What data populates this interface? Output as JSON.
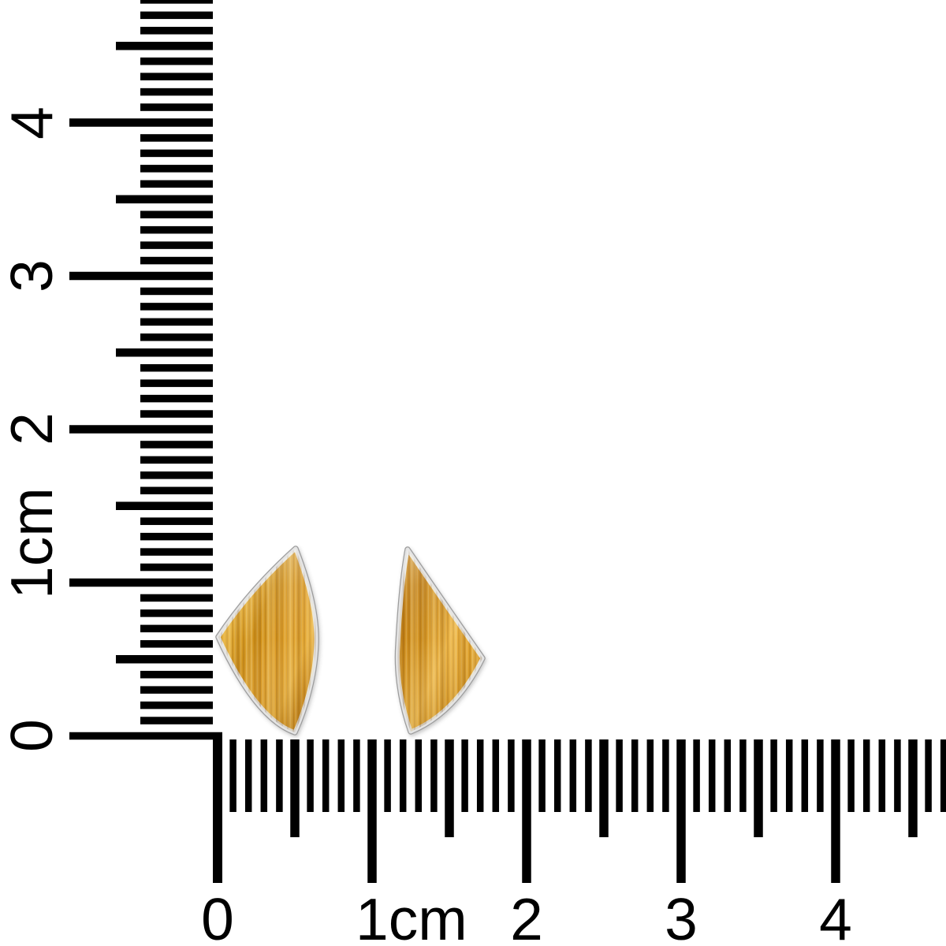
{
  "scene": {
    "background": "#ffffff",
    "subject": "Two triangular tiger-eye stud earrings photographed beside an L-shaped centimeter ruler"
  },
  "rulers": {
    "ink_color": "#000000",
    "unit": "cm",
    "vertical": {
      "labels": [
        "0",
        "1cm",
        "2",
        "3",
        "4"
      ]
    },
    "horizontal": {
      "labels": [
        "0",
        "1cm",
        "2",
        "3",
        "4"
      ]
    }
  },
  "earrings": {
    "stone": "tiger-eye",
    "count": 2,
    "colors": {
      "bezel_silver": "#e4e4e4",
      "bezel_edge": "#9c9c9c",
      "left_gradient": [
        "#eebb45",
        "#cf9018",
        "#dd9d28",
        "#e5ab38",
        "#d09020"
      ],
      "right_gradient": [
        "#c27d0e",
        "#d59522",
        "#ecb445",
        "#dfa12c",
        "#d2931f"
      ]
    }
  }
}
